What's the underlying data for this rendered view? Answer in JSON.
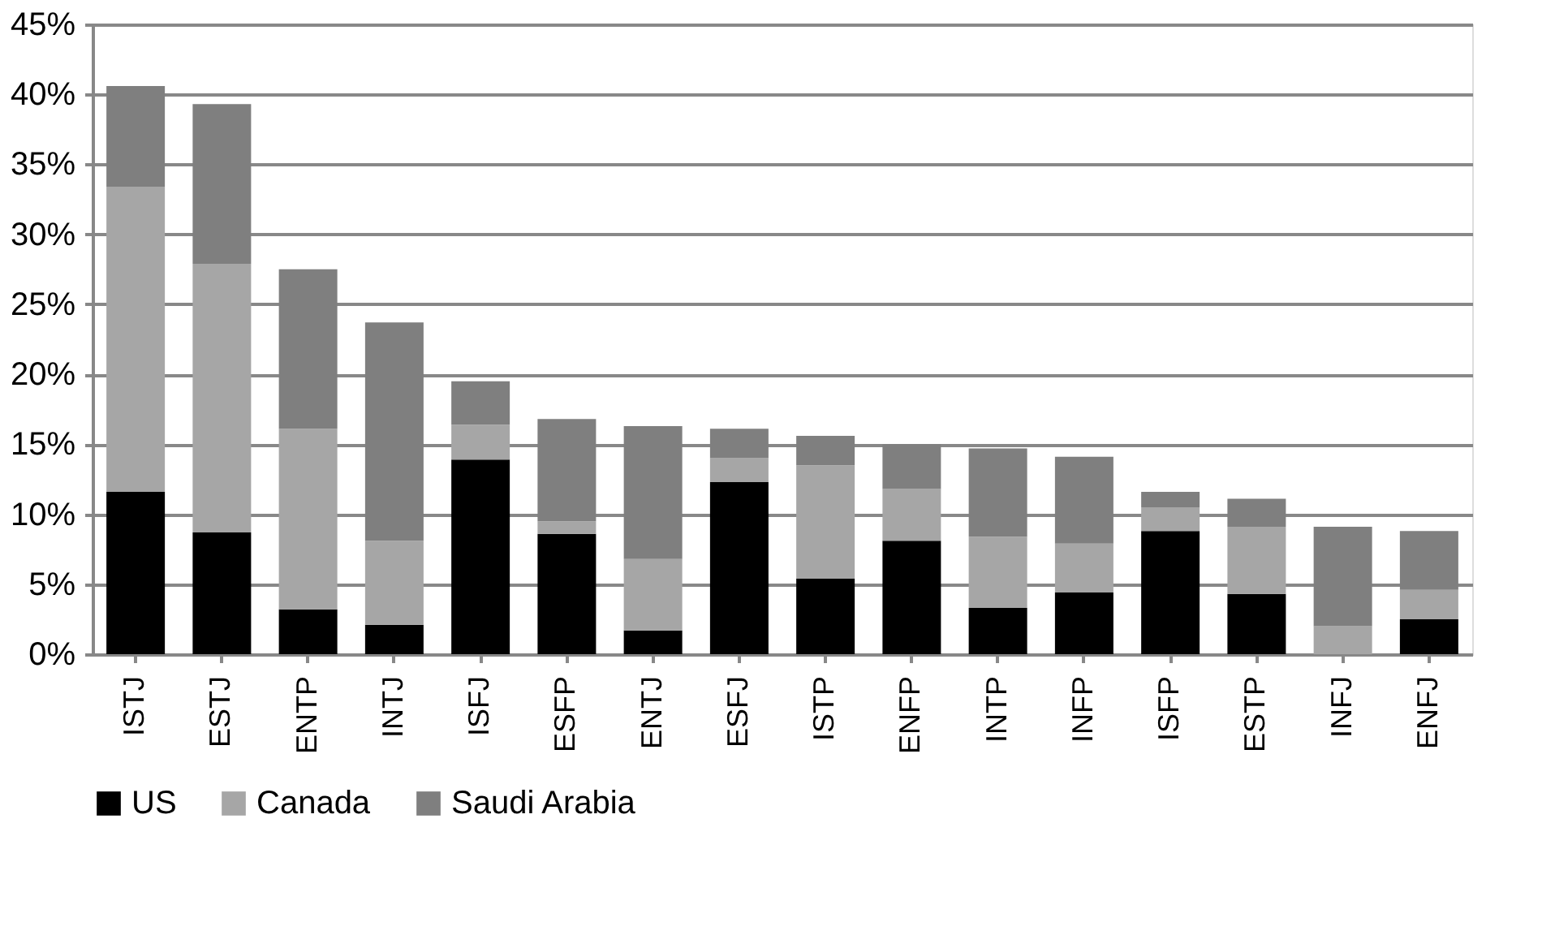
{
  "chart_data": {
    "type": "bar",
    "stacked": true,
    "categories": [
      "ISTJ",
      "ESTJ",
      "ENTP",
      "INTJ",
      "ISFJ",
      "ESFP",
      "ENTJ",
      "ESFJ",
      "ISTP",
      "ENFP",
      "INTP",
      "INFP",
      "ISFP",
      "ESTP",
      "INFJ",
      "ENFJ"
    ],
    "series": [
      {
        "name": "US",
        "color": "#000000",
        "values": [
          11.6,
          8.7,
          3.2,
          2.1,
          13.9,
          8.6,
          1.7,
          12.3,
          5.4,
          8.1,
          3.3,
          4.4,
          8.8,
          4.3,
          0,
          2.5
        ]
      },
      {
        "name": "Canada",
        "color": "#a6a6a6",
        "values": [
          21.8,
          19.2,
          12.9,
          6.0,
          2.5,
          0.9,
          5.1,
          1.7,
          8.1,
          3.7,
          5.1,
          3.5,
          1.7,
          4.8,
          2.0,
          2.1
        ]
      },
      {
        "name": "Saudi Arabia",
        "color": "#7f7f7f",
        "values": [
          7.2,
          11.4,
          11.4,
          15.6,
          3.1,
          7.3,
          9.5,
          2.1,
          2.1,
          3.2,
          6.3,
          6.2,
          1.1,
          2.0,
          7.1,
          4.2
        ]
      }
    ],
    "ylim": [
      0,
      45
    ],
    "yticks": [
      {
        "value": 0,
        "label": "0%"
      },
      {
        "value": 5,
        "label": "5%"
      },
      {
        "value": 10,
        "label": "10%"
      },
      {
        "value": 15,
        "label": "15%"
      },
      {
        "value": 20,
        "label": "20%"
      },
      {
        "value": 25,
        "label": "25%"
      },
      {
        "value": 30,
        "label": "30%"
      },
      {
        "value": 35,
        "label": "35%"
      },
      {
        "value": 40,
        "label": "40%"
      },
      {
        "value": 45,
        "label": "45%"
      }
    ],
    "grid": "y",
    "legend": "bottom"
  }
}
